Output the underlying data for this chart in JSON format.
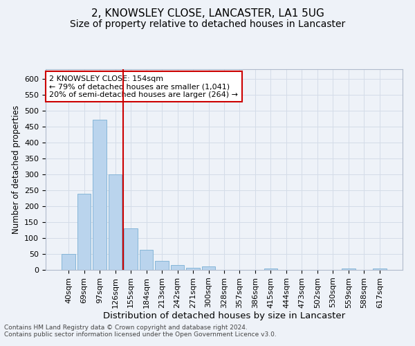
{
  "title": "2, KNOWSLEY CLOSE, LANCASTER, LA1 5UG",
  "subtitle": "Size of property relative to detached houses in Lancaster",
  "xlabel": "Distribution of detached houses by size in Lancaster",
  "ylabel": "Number of detached properties",
  "categories": [
    "40sqm",
    "69sqm",
    "97sqm",
    "126sqm",
    "155sqm",
    "184sqm",
    "213sqm",
    "242sqm",
    "271sqm",
    "300sqm",
    "328sqm",
    "357sqm",
    "386sqm",
    "415sqm",
    "444sqm",
    "473sqm",
    "502sqm",
    "530sqm",
    "559sqm",
    "588sqm",
    "617sqm"
  ],
  "values": [
    50,
    238,
    472,
    300,
    130,
    62,
    28,
    15,
    7,
    10,
    0,
    0,
    0,
    4,
    0,
    0,
    0,
    0,
    5,
    0,
    5
  ],
  "bar_color": "#bad4ed",
  "bar_edge_color": "#7aafd4",
  "vline_color": "#cc0000",
  "vline_index": 4,
  "annotation_text": "2 KNOWSLEY CLOSE: 154sqm\n← 79% of detached houses are smaller (1,041)\n20% of semi-detached houses are larger (264) →",
  "annotation_box_facecolor": "#ffffff",
  "annotation_box_edgecolor": "#cc0000",
  "ylim": [
    0,
    630
  ],
  "yticks": [
    0,
    50,
    100,
    150,
    200,
    250,
    300,
    350,
    400,
    450,
    500,
    550,
    600
  ],
  "grid_color": "#d4dce8",
  "bg_color": "#eef2f8",
  "footer_line1": "Contains HM Land Registry data © Crown copyright and database right 2024.",
  "footer_line2": "Contains public sector information licensed under the Open Government Licence v3.0.",
  "title_fontsize": 11,
  "subtitle_fontsize": 10,
  "xlabel_fontsize": 9.5,
  "ylabel_fontsize": 8.5,
  "tick_fontsize": 8,
  "annot_fontsize": 8,
  "footer_fontsize": 6.5
}
